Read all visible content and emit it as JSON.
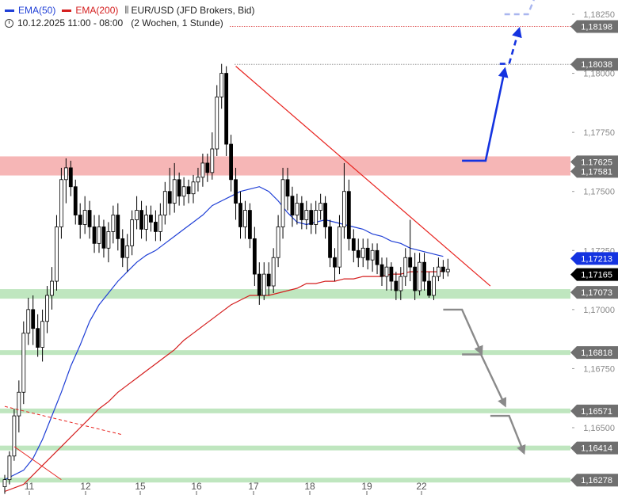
{
  "legend": {
    "ema50_label": "EMA(50)",
    "ema200_label": "EMA(200)",
    "bar_icon": "candlestick-icon",
    "symbol_label": "EUR/USD (JFD Brokers, Bid)",
    "clock_icon": "clock-icon",
    "date_range": "10.12.2025 11:00 - 08:00",
    "period": "(2 Wochen, 1 Stunde)"
  },
  "colors": {
    "ema50": "#1f3fd6",
    "ema200": "#d41e1e",
    "candle": "#000000",
    "resistance_zone": "#f6b6b6",
    "support_zone": "#bfe6bf",
    "trendline": "#e8231f",
    "bull_arrow": "#1433e0",
    "bull_arrow_faded": "#a9b6ef",
    "bear_arrow": "#8a8a8a",
    "label_gray": "#6f6f6f",
    "label_blue": "#1433e0",
    "label_black": "#000000"
  },
  "chart_data": {
    "type": "candlestick",
    "ylim": [
      1.1624,
      1.1836
    ],
    "x_ticks": [
      "11",
      "12",
      "15",
      "16",
      "17",
      "18",
      "19",
      "22"
    ],
    "y_ticks": [
      "1,18250",
      "1,18000",
      "1,17750",
      "1,17500",
      "1,17250",
      "1,17000",
      "1,16750",
      "1,16500"
    ],
    "price_labels": [
      {
        "text": "1,18198",
        "value": 1.18198,
        "style": "gray"
      },
      {
        "text": "1,18038",
        "value": 1.18038,
        "style": "gray"
      },
      {
        "text": "1,17625",
        "value": 1.17625,
        "style": "gray"
      },
      {
        "text": "1,17581",
        "value": 1.17581,
        "style": "gray_behind"
      },
      {
        "text": "1,17213",
        "value": 1.17213,
        "style": "blue"
      },
      {
        "text": "1,17165",
        "value": 1.17165,
        "style": "black"
      },
      {
        "text": "1,17073",
        "value": 1.17073,
        "style": "gray"
      },
      {
        "text": "1,16818",
        "value": 1.16818,
        "style": "gray"
      },
      {
        "text": "1,16571",
        "value": 1.16571,
        "style": "gray"
      },
      {
        "text": "1,16414",
        "value": 1.16414,
        "style": "gray"
      },
      {
        "text": "1,16278",
        "value": 1.16278,
        "style": "gray"
      }
    ],
    "zones": [
      {
        "kind": "resistance",
        "from": 1.17581,
        "to": 1.17625
      },
      {
        "kind": "support",
        "from": 1.1704,
        "to": 1.17073
      },
      {
        "kind": "support",
        "value": 1.16818
      },
      {
        "kind": "support",
        "value": 1.16571
      },
      {
        "kind": "support",
        "value": 1.16414
      },
      {
        "kind": "support",
        "value": 1.16278
      }
    ],
    "levels_dotted": [
      1.18198,
      1.18038
    ],
    "ema50_path": [
      [
        0,
        1.1628
      ],
      [
        4,
        1.1632
      ],
      [
        6,
        1.1637
      ],
      [
        8,
        1.1645
      ],
      [
        10,
        1.1655
      ],
      [
        12,
        1.1665
      ],
      [
        14,
        1.1676
      ],
      [
        16,
        1.1685
      ],
      [
        18,
        1.1695
      ],
      [
        20,
        1.1702
      ],
      [
        22,
        1.1707
      ],
      [
        24,
        1.1712
      ],
      [
        26,
        1.1716
      ],
      [
        28,
        1.172
      ],
      [
        30,
        1.1723
      ],
      [
        32,
        1.1725
      ],
      [
        34,
        1.1728
      ],
      [
        36,
        1.1731
      ],
      [
        38,
        1.1734
      ],
      [
        40,
        1.1737
      ],
      [
        42,
        1.174
      ],
      [
        44,
        1.1744
      ],
      [
        46,
        1.1746
      ],
      [
        48,
        1.1748
      ],
      [
        50,
        1.175
      ],
      [
        52,
        1.1751
      ],
      [
        54,
        1.1752
      ],
      [
        56,
        1.175
      ],
      [
        58,
        1.1746
      ],
      [
        60,
        1.1741
      ],
      [
        62,
        1.1737
      ],
      [
        64,
        1.1736
      ],
      [
        66,
        1.1737
      ],
      [
        68,
        1.1738
      ],
      [
        70,
        1.1737
      ],
      [
        72,
        1.1736
      ],
      [
        74,
        1.1735
      ],
      [
        76,
        1.1734
      ],
      [
        78,
        1.1732
      ],
      [
        80,
        1.1731
      ],
      [
        82,
        1.1729
      ],
      [
        84,
        1.1728
      ],
      [
        86,
        1.1726
      ],
      [
        88,
        1.1725
      ],
      [
        90,
        1.1724
      ],
      [
        92,
        1.1723
      ],
      [
        93,
        1.17225
      ]
    ],
    "ema200_path": [
      [
        0,
        1.1623
      ],
      [
        4,
        1.1626
      ],
      [
        6,
        1.163
      ],
      [
        8,
        1.1634
      ],
      [
        10,
        1.1638
      ],
      [
        12,
        1.1642
      ],
      [
        14,
        1.1646
      ],
      [
        16,
        1.165
      ],
      [
        18,
        1.1654
      ],
      [
        20,
        1.1658
      ],
      [
        22,
        1.1661
      ],
      [
        24,
        1.1665
      ],
      [
        26,
        1.1668
      ],
      [
        28,
        1.1671
      ],
      [
        30,
        1.1674
      ],
      [
        32,
        1.1677
      ],
      [
        34,
        1.168
      ],
      [
        36,
        1.1683
      ],
      [
        38,
        1.1687
      ],
      [
        40,
        1.169
      ],
      [
        42,
        1.1693
      ],
      [
        44,
        1.1696
      ],
      [
        46,
        1.1699
      ],
      [
        48,
        1.1702
      ],
      [
        50,
        1.1704
      ],
      [
        52,
        1.1706
      ],
      [
        54,
        1.1706
      ],
      [
        56,
        1.1706
      ],
      [
        58,
        1.1707
      ],
      [
        60,
        1.1708
      ],
      [
        62,
        1.1709
      ],
      [
        64,
        1.1711
      ],
      [
        66,
        1.1711
      ],
      [
        68,
        1.1712
      ],
      [
        70,
        1.1712
      ],
      [
        72,
        1.1713
      ],
      [
        74,
        1.1713
      ],
      [
        76,
        1.1714
      ],
      [
        78,
        1.1714
      ],
      [
        80,
        1.1714
      ],
      [
        82,
        1.1715
      ],
      [
        84,
        1.1715
      ],
      [
        86,
        1.1716
      ],
      [
        88,
        1.1716
      ],
      [
        90,
        1.1716
      ],
      [
        92,
        1.1716
      ],
      [
        93,
        1.17165
      ]
    ],
    "trendline": [
      [
        49,
        1.1803
      ],
      [
        103,
        1.171
      ]
    ],
    "old_trend_dashed": [
      [
        0,
        1.1659
      ],
      [
        25,
        1.1647
      ]
    ],
    "old_trend_solid": [
      [
        2,
        1.1642
      ],
      [
        12,
        1.1628
      ]
    ],
    "bull_arrow_solid": [
      [
        97,
        1.1763
      ],
      [
        102,
        1.1763
      ],
      [
        106,
        1.1801
      ]
    ],
    "bull_arrow_dashed": [
      [
        105,
        1.1804
      ],
      [
        107,
        1.1804
      ],
      [
        109,
        1.1818
      ]
    ],
    "bull_arrow_faded": [
      [
        106,
        1.1825
      ],
      [
        111,
        1.1825
      ],
      [
        114,
        1.184
      ]
    ],
    "bear_arrows": [
      [
        [
          93,
          1.17
        ],
        [
          97,
          1.17
        ],
        [
          101,
          1.1682
        ]
      ],
      [
        [
          97,
          1.1681
        ],
        [
          101,
          1.1681
        ],
        [
          106,
          1.166
        ]
      ],
      [
        [
          103,
          1.1655
        ],
        [
          107,
          1.1655
        ],
        [
          110,
          1.164
        ]
      ]
    ],
    "candles": [
      [
        1.1625,
        1.1628,
        1.1622,
        1.163
      ],
      [
        1.1628,
        1.1638,
        1.1626,
        1.164
      ],
      [
        1.1638,
        1.1655,
        1.1636,
        1.1658
      ],
      [
        1.1655,
        1.1665,
        1.1648,
        1.167
      ],
      [
        1.1665,
        1.169,
        1.166,
        1.1695
      ],
      [
        1.169,
        1.17,
        1.1685,
        1.1705
      ],
      [
        1.17,
        1.1692,
        1.1685,
        1.1706
      ],
      [
        1.1692,
        1.1684,
        1.168,
        1.1698
      ],
      [
        1.1684,
        1.1695,
        1.1678,
        1.17
      ],
      [
        1.1695,
        1.1706,
        1.169,
        1.171
      ],
      [
        1.1706,
        1.1712,
        1.17,
        1.1718
      ],
      [
        1.1712,
        1.1735,
        1.1708,
        1.174
      ],
      [
        1.1735,
        1.1755,
        1.173,
        1.176
      ],
      [
        1.1755,
        1.176,
        1.1745,
        1.1764
      ],
      [
        1.176,
        1.1752,
        1.1748,
        1.1763
      ],
      [
        1.1752,
        1.174,
        1.1736,
        1.1755
      ],
      [
        1.174,
        1.1736,
        1.173,
        1.1745
      ],
      [
        1.1736,
        1.1742,
        1.1732,
        1.1748
      ],
      [
        1.1742,
        1.1735,
        1.173,
        1.1746
      ],
      [
        1.1735,
        1.1728,
        1.1724,
        1.174
      ],
      [
        1.1728,
        1.1735,
        1.1724,
        1.174
      ],
      [
        1.1735,
        1.1726,
        1.1722,
        1.1738
      ],
      [
        1.1726,
        1.1733,
        1.172,
        1.1737
      ],
      [
        1.1733,
        1.174,
        1.1728,
        1.1744
      ],
      [
        1.174,
        1.173,
        1.1725,
        1.1745
      ],
      [
        1.173,
        1.1722,
        1.1718,
        1.1734
      ],
      [
        1.1722,
        1.1727,
        1.1716,
        1.1732
      ],
      [
        1.1727,
        1.1738,
        1.1723,
        1.1742
      ],
      [
        1.1738,
        1.1742,
        1.1734,
        1.1748
      ],
      [
        1.1742,
        1.1734,
        1.173,
        1.1746
      ],
      [
        1.1734,
        1.174,
        1.1729,
        1.1744
      ],
      [
        1.174,
        1.1737,
        1.1733,
        1.1744
      ],
      [
        1.1737,
        1.1733,
        1.1729,
        1.1742
      ],
      [
        1.1733,
        1.174,
        1.1729,
        1.1745
      ],
      [
        1.174,
        1.175,
        1.1736,
        1.1754
      ],
      [
        1.175,
        1.1745,
        1.174,
        1.176
      ],
      [
        1.1745,
        1.1755,
        1.1741,
        1.1762
      ],
      [
        1.1755,
        1.1748,
        1.1744,
        1.1758
      ],
      [
        1.1748,
        1.1752,
        1.1744,
        1.1756
      ],
      [
        1.1752,
        1.1749,
        1.1745,
        1.1755
      ],
      [
        1.1749,
        1.1754,
        1.1745,
        1.1757
      ],
      [
        1.1754,
        1.1756,
        1.175,
        1.176
      ],
      [
        1.1756,
        1.1762,
        1.1752,
        1.1766
      ],
      [
        1.1762,
        1.1758,
        1.1754,
        1.1766
      ],
      [
        1.1758,
        1.1768,
        1.1755,
        1.1775
      ],
      [
        1.1768,
        1.179,
        1.1765,
        1.1795
      ],
      [
        1.179,
        1.18,
        1.1785,
        1.1804
      ],
      [
        1.18,
        1.177,
        1.1765,
        1.1803
      ],
      [
        1.177,
        1.1755,
        1.175,
        1.1774
      ],
      [
        1.1755,
        1.1745,
        1.1738,
        1.176
      ],
      [
        1.1745,
        1.1735,
        1.173,
        1.175
      ],
      [
        1.1735,
        1.1742,
        1.173,
        1.1746
      ],
      [
        1.1742,
        1.173,
        1.1726,
        1.1745
      ],
      [
        1.173,
        1.1715,
        1.171,
        1.1735
      ],
      [
        1.1715,
        1.1706,
        1.1702,
        1.172
      ],
      [
        1.1706,
        1.1715,
        1.1704,
        1.172
      ],
      [
        1.1715,
        1.171,
        1.1706,
        1.172
      ],
      [
        1.171,
        1.1722,
        1.1707,
        1.1726
      ],
      [
        1.1722,
        1.1735,
        1.1718,
        1.174
      ],
      [
        1.1735,
        1.1755,
        1.173,
        1.176
      ],
      [
        1.1755,
        1.1748,
        1.1742,
        1.176
      ],
      [
        1.1748,
        1.174,
        1.1735,
        1.1752
      ],
      [
        1.174,
        1.1745,
        1.1736,
        1.1749
      ],
      [
        1.1745,
        1.1738,
        1.1734,
        1.1748
      ],
      [
        1.1738,
        1.1742,
        1.1734,
        1.1746
      ],
      [
        1.1742,
        1.1736,
        1.1732,
        1.1745
      ],
      [
        1.1736,
        1.1742,
        1.1732,
        1.1746
      ],
      [
        1.1742,
        1.1745,
        1.1738,
        1.1749
      ],
      [
        1.1745,
        1.1735,
        1.173,
        1.1748
      ],
      [
        1.1735,
        1.1722,
        1.1718,
        1.1738
      ],
      [
        1.1722,
        1.1718,
        1.1712,
        1.1726
      ],
      [
        1.1718,
        1.1735,
        1.1715,
        1.174
      ],
      [
        1.1735,
        1.175,
        1.173,
        1.1762
      ],
      [
        1.175,
        1.173,
        1.1725,
        1.1755
      ],
      [
        1.173,
        1.1725,
        1.172,
        1.1734
      ],
      [
        1.1725,
        1.1722,
        1.1718,
        1.173
      ],
      [
        1.1722,
        1.1726,
        1.1718,
        1.173
      ],
      [
        1.1726,
        1.1721,
        1.1717,
        1.173
      ],
      [
        1.1721,
        1.1725,
        1.1716,
        1.1728
      ],
      [
        1.1725,
        1.1719,
        1.1715,
        1.1728
      ],
      [
        1.1719,
        1.1714,
        1.171,
        1.1722
      ],
      [
        1.1714,
        1.1718,
        1.1708,
        1.1722
      ],
      [
        1.1718,
        1.1712,
        1.1708,
        1.172
      ],
      [
        1.1712,
        1.1708,
        1.1704,
        1.1716
      ],
      [
        1.1708,
        1.1714,
        1.1704,
        1.1718
      ],
      [
        1.1714,
        1.1722,
        1.171,
        1.1726
      ],
      [
        1.1722,
        1.1718,
        1.1712,
        1.1738
      ],
      [
        1.1718,
        1.1708,
        1.1704,
        1.1724
      ],
      [
        1.1708,
        1.172,
        1.1706,
        1.1724
      ],
      [
        1.172,
        1.1712,
        1.1708,
        1.1724
      ],
      [
        1.1712,
        1.1706,
        1.1705,
        1.1716
      ],
      [
        1.1706,
        1.1714,
        1.1704,
        1.1718
      ],
      [
        1.1714,
        1.1718,
        1.1712,
        1.1722
      ],
      [
        1.1718,
        1.1716,
        1.1713,
        1.1721
      ],
      [
        1.1716,
        1.1717,
        1.1714,
        1.17215
      ]
    ]
  }
}
